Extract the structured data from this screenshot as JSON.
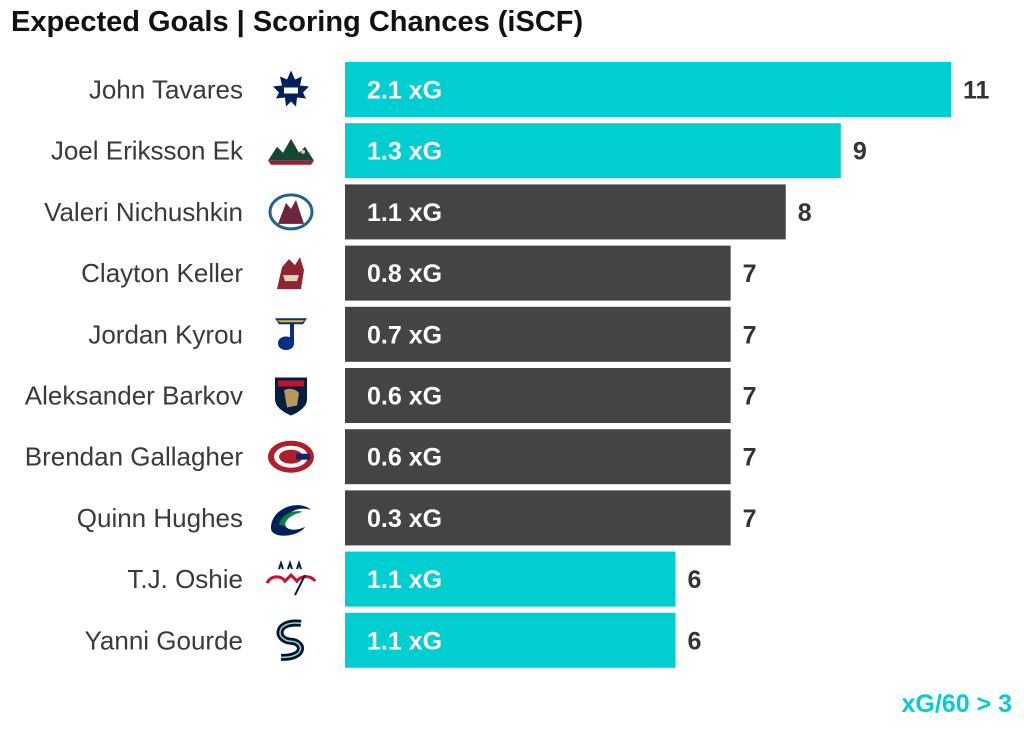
{
  "chart_data": {
    "type": "bar",
    "orientation": "horizontal",
    "title": "Expected Goals | Scoring Chances (iSCF)",
    "categories": [
      "John Tavares",
      "Joel Eriksson Ek",
      "Valeri Nichushkin",
      "Clayton Keller",
      "Jordan Kyrou",
      "Aleksander Barkov",
      "Brendan Gallagher",
      "Quinn Hughes",
      "T.J. Oshie",
      "Yanni Gourde"
    ],
    "values": [
      11,
      9,
      8,
      7,
      7,
      7,
      7,
      7,
      6,
      6
    ],
    "bar_labels": [
      "2.1 xG",
      "1.3 xG",
      "1.1 xG",
      "0.8 xG",
      "0.7 xG",
      "0.6 xG",
      "0.6 xG",
      "0.3 xG",
      "1.1 xG",
      "1.1 xG"
    ],
    "highlight": [
      true,
      true,
      false,
      false,
      false,
      false,
      false,
      false,
      true,
      true
    ],
    "teams": [
      "toronto-maple-leafs",
      "minnesota-wild",
      "colorado-avalanche",
      "arizona-coyotes",
      "st-louis-blues",
      "florida-panthers",
      "montreal-canadiens",
      "vancouver-canucks",
      "washington-capitals",
      "seattle-kraken"
    ],
    "xlim": [
      0,
      11
    ],
    "grid": false,
    "legend": "none",
    "colors": {
      "highlight": "#00ced1",
      "default": "#444444",
      "note": "#00ced1"
    },
    "note": "xG/60 > 3"
  }
}
